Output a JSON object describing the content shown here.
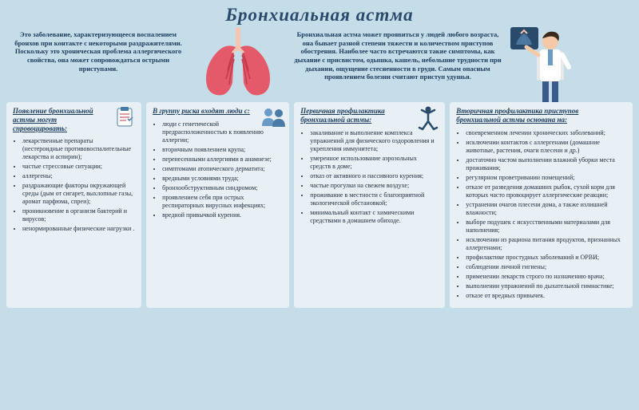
{
  "title": "Бронхиальная астма",
  "intro_left": "Это заболевание, характеризующееся воспалением бронхов при контакте с некоторыми раздражителями. Поскольку это хроническая проблема аллергического свойства, она может сопровождаться острыми приступами.",
  "intro_right": "Бронхиальная астма может проявиться у людей любого возраста, она бывает разной степени тяжести и количеством приступов обострения. Наиболее часто встречаются такие симптомы, как дыхание с присвистом, одышка, кашель, небольшие трудности при дыхании, ощущение стесненности в груди. Самым опасным проявлением болезни считают приступ удушья.",
  "columns": [
    {
      "heading": "Появление бронхиальной астмы могут спровоцировать:",
      "items": [
        "лекарственные препараты (нестероидные противовоспалительные лекарства и аспирин);",
        "частые стрессовые ситуации;",
        "аллергены;",
        "раздражающие факторы окружающей среды (дым от сигарет, выхлопные газы, аромат парфюма, спреи);",
        "проникновение в организм бактерий и вирусов;",
        "ненормированные физические нагрузки ."
      ]
    },
    {
      "heading": "В группу риска входят люди с:",
      "items": [
        "люди с генетической предрасположенностью к появлению аллергии;",
        "вторичным появлением крупа;",
        "перенесенными аллергиями в анамнезе;",
        "симптомами атопического дерматита;",
        "вредными условиями труда;",
        "бронхообструктивным синдромом;",
        "проявлением себя при острых респираторных вирусных инфекциях;",
        "вредной привычкой курения."
      ]
    },
    {
      "heading": "Первичная профилактика бронхиальной астмы:",
      "items": [
        "закаливание и выполнение комплекса упражнений для физического оздоровления и укрепления иммунитета;",
        "умеренное использование аэрозольных средств в доме;",
        "отказ от активного и пассивного курения;",
        "частые прогулки на свежем воздухе;",
        "проживание в местности с благоприятной экологической обстановкой;",
        "минимальный контакт с химическими средствами в домашнем обиходе."
      ]
    },
    {
      "heading": "Вторичная профилактика приступов бронхиальной астмы основана на:",
      "items": [
        "своевременном лечении хронических заболеваний;",
        "исключении контактов с аллергенами (домашние животные, растения, очаги плесени и др.)",
        "достаточно частом выполнении влажной уборки места проживания;",
        "регулярном проветривании помещений;",
        "отказе от разведения домашних рыбок, сухой корм для которых часто провоцирует аллергические реакции;",
        "устранении очагов плесени дома, а также излишней влажности;",
        "выборе подушек с искусственными материалами для наполнения;",
        "исключении из рациона питания продуктов, признанных аллергенами;",
        "профилактике простудных заболеваний и ОРВИ;",
        "соблюдении личной гигиены;",
        "применении лекарств строго по назначению врача;",
        "выполнении упражнений по дыхательной гимнастике;",
        "отказе от вредных привычек."
      ]
    }
  ],
  "colors": {
    "bg": "#c5dde8",
    "col_bg": "#e8f0f5",
    "text": "#1a3a5c",
    "lungs": "#e45a6a",
    "lungs_dark": "#c23a4a",
    "trachea": "#f5c5b0",
    "icon_blue": "#4a7aa8",
    "icon_navy": "#2a4a6c",
    "doctor_coat": "#ffffff",
    "doctor_skin": "#f5c9a8",
    "doctor_pants": "#3a5a8c"
  }
}
